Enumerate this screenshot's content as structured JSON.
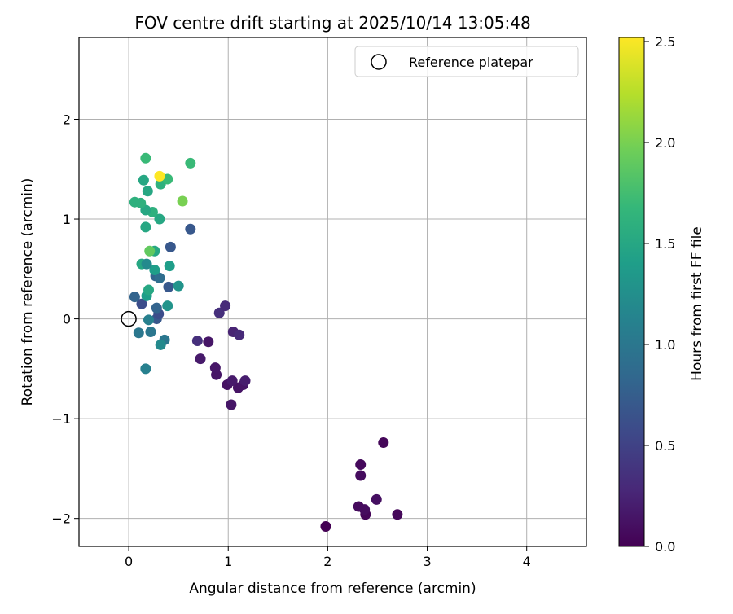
{
  "chart_data": {
    "type": "scatter",
    "title": "FOV centre drift starting at 2025/10/14 13:05:48",
    "xlabel": "Angular distance from reference (arcmin)",
    "ylabel": "Rotation from reference (arcmin)",
    "xlim": [
      -0.5,
      4.6
    ],
    "ylim": [
      -2.28,
      2.82
    ],
    "xticks": [
      0,
      1,
      2,
      3,
      4
    ],
    "yticks": [
      -2,
      -1,
      0,
      1,
      2
    ],
    "xtick_labels": [
      "0",
      "1",
      "2",
      "3",
      "4"
    ],
    "ytick_labels": [
      "−2",
      "−1",
      "0",
      "1",
      "2"
    ],
    "grid": true,
    "legend": {
      "position": "top-right",
      "entries": [
        {
          "label": "Reference platepar",
          "marker": "open-circle"
        }
      ]
    },
    "reference_point": {
      "x": 0,
      "y": 0
    },
    "colorbar": {
      "label": "Hours from first FF file",
      "colormap": "viridis",
      "range": [
        0,
        2.52
      ],
      "ticks": [
        0.0,
        0.5,
        1.0,
        1.5,
        2.0,
        2.5
      ],
      "tick_labels": [
        "0.0",
        "0.5",
        "1.0",
        "1.5",
        "2.0",
        "2.5"
      ]
    },
    "points": [
      {
        "x": 1.98,
        "y": -2.08,
        "c": 0.0
      },
      {
        "x": 2.38,
        "y": -1.96,
        "c": 0.03
      },
      {
        "x": 2.7,
        "y": -1.96,
        "c": 0.05
      },
      {
        "x": 2.31,
        "y": -1.88,
        "c": 0.07
      },
      {
        "x": 2.37,
        "y": -1.91,
        "c": 0.08
      },
      {
        "x": 2.49,
        "y": -1.81,
        "c": 0.1
      },
      {
        "x": 2.33,
        "y": -1.57,
        "c": 0.08
      },
      {
        "x": 2.33,
        "y": -1.46,
        "c": 0.06
      },
      {
        "x": 2.56,
        "y": -1.24,
        "c": 0.04
      },
      {
        "x": 1.03,
        "y": -0.86,
        "c": 0.15
      },
      {
        "x": 1.1,
        "y": -0.69,
        "c": 0.13
      },
      {
        "x": 0.99,
        "y": -0.66,
        "c": 0.12
      },
      {
        "x": 1.04,
        "y": -0.62,
        "c": 0.18
      },
      {
        "x": 1.15,
        "y": -0.66,
        "c": 0.14
      },
      {
        "x": 1.17,
        "y": -0.62,
        "c": 0.2
      },
      {
        "x": 0.88,
        "y": -0.56,
        "c": 0.14
      },
      {
        "x": 0.87,
        "y": -0.49,
        "c": 0.15
      },
      {
        "x": 0.72,
        "y": -0.4,
        "c": 0.18
      },
      {
        "x": 0.8,
        "y": -0.23,
        "c": 0.15
      },
      {
        "x": 0.69,
        "y": -0.22,
        "c": 0.35
      },
      {
        "x": 1.05,
        "y": -0.13,
        "c": 0.25
      },
      {
        "x": 1.11,
        "y": -0.16,
        "c": 0.3
      },
      {
        "x": 0.91,
        "y": 0.06,
        "c": 0.35
      },
      {
        "x": 0.97,
        "y": 0.13,
        "c": 0.3
      },
      {
        "x": 0.28,
        "y": 0.0,
        "c": 0.7
      },
      {
        "x": 0.3,
        "y": 0.05,
        "c": 0.6
      },
      {
        "x": 0.28,
        "y": 0.11,
        "c": 0.8
      },
      {
        "x": 0.39,
        "y": 0.13,
        "c": 1.3
      },
      {
        "x": 0.13,
        "y": 0.15,
        "c": 0.6
      },
      {
        "x": 0.06,
        "y": 0.22,
        "c": 0.8
      },
      {
        "x": 0.2,
        "y": -0.01,
        "c": 1.1
      },
      {
        "x": 0.1,
        "y": -0.14,
        "c": 1.0
      },
      {
        "x": 0.22,
        "y": -0.13,
        "c": 1.0
      },
      {
        "x": 0.36,
        "y": -0.21,
        "c": 1.0
      },
      {
        "x": 0.32,
        "y": -0.26,
        "c": 1.2
      },
      {
        "x": 0.17,
        "y": -0.5,
        "c": 1.1
      },
      {
        "x": 0.18,
        "y": 0.23,
        "c": 1.4
      },
      {
        "x": 0.2,
        "y": 0.29,
        "c": 1.5
      },
      {
        "x": 0.4,
        "y": 0.32,
        "c": 0.7
      },
      {
        "x": 0.5,
        "y": 0.33,
        "c": 1.3
      },
      {
        "x": 0.27,
        "y": 0.43,
        "c": 0.8
      },
      {
        "x": 0.31,
        "y": 0.41,
        "c": 0.9
      },
      {
        "x": 0.26,
        "y": 0.49,
        "c": 1.4
      },
      {
        "x": 0.41,
        "y": 0.53,
        "c": 1.4
      },
      {
        "x": 0.13,
        "y": 0.55,
        "c": 1.5
      },
      {
        "x": 0.18,
        "y": 0.55,
        "c": 1.2
      },
      {
        "x": 0.26,
        "y": 0.68,
        "c": 1.5
      },
      {
        "x": 0.21,
        "y": 0.68,
        "c": 1.9
      },
      {
        "x": 0.42,
        "y": 0.72,
        "c": 0.7
      },
      {
        "x": 0.62,
        "y": 0.9,
        "c": 0.7
      },
      {
        "x": 0.17,
        "y": 0.92,
        "c": 1.5
      },
      {
        "x": 0.31,
        "y": 1.0,
        "c": 1.5
      },
      {
        "x": 0.24,
        "y": 1.07,
        "c": 1.6
      },
      {
        "x": 0.17,
        "y": 1.09,
        "c": 1.5
      },
      {
        "x": 0.06,
        "y": 1.17,
        "c": 1.6
      },
      {
        "x": 0.12,
        "y": 1.16,
        "c": 1.6
      },
      {
        "x": 0.54,
        "y": 1.18,
        "c": 2.0
      },
      {
        "x": 0.19,
        "y": 1.28,
        "c": 1.5
      },
      {
        "x": 0.32,
        "y": 1.35,
        "c": 1.6
      },
      {
        "x": 0.15,
        "y": 1.39,
        "c": 1.5
      },
      {
        "x": 0.39,
        "y": 1.4,
        "c": 1.7
      },
      {
        "x": 0.31,
        "y": 1.43,
        "c": 2.52
      },
      {
        "x": 0.62,
        "y": 1.56,
        "c": 1.7
      },
      {
        "x": 0.17,
        "y": 1.61,
        "c": 1.7
      }
    ]
  }
}
